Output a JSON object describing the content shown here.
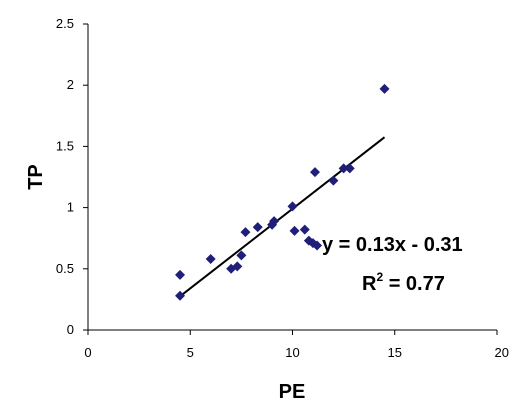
{
  "chart_data": {
    "type": "scatter",
    "xlabel": "PE",
    "ylabel": "TP",
    "xlim": [
      0,
      20
    ],
    "ylim": [
      0,
      2.5
    ],
    "x_ticks": [
      "0",
      "5",
      "10",
      "15",
      "20"
    ],
    "y_ticks": [
      "0",
      "0.5",
      "1",
      "1.5",
      "2",
      "2.5"
    ],
    "grid": false,
    "legend": "none",
    "marker": "diamond",
    "colors": {
      "points": "#1f1f7a",
      "trendline": "#000000"
    },
    "points": [
      {
        "x": 4.5,
        "y": 0.28
      },
      {
        "x": 4.5,
        "y": 0.45
      },
      {
        "x": 6.0,
        "y": 0.58
      },
      {
        "x": 7.0,
        "y": 0.5
      },
      {
        "x": 7.3,
        "y": 0.52
      },
      {
        "x": 7.5,
        "y": 0.61
      },
      {
        "x": 7.7,
        "y": 0.8
      },
      {
        "x": 8.3,
        "y": 0.84
      },
      {
        "x": 9.0,
        "y": 0.86
      },
      {
        "x": 9.1,
        "y": 0.89
      },
      {
        "x": 10.0,
        "y": 1.01
      },
      {
        "x": 10.1,
        "y": 0.81
      },
      {
        "x": 10.6,
        "y": 0.82
      },
      {
        "x": 10.8,
        "y": 0.73
      },
      {
        "x": 11.0,
        "y": 0.71
      },
      {
        "x": 11.2,
        "y": 0.69
      },
      {
        "x": 11.1,
        "y": 1.29
      },
      {
        "x": 12.0,
        "y": 1.22
      },
      {
        "x": 12.5,
        "y": 1.32
      },
      {
        "x": 12.8,
        "y": 1.32
      },
      {
        "x": 14.5,
        "y": 1.97
      }
    ],
    "trendline": {
      "slope": 0.13,
      "intercept": -0.31,
      "x_range": [
        4.5,
        14.5
      ]
    },
    "annotations": {
      "equation": "y = 0.13x - 0.31",
      "r2_prefix": "R",
      "r2_sup": "2",
      "r2_suffix": " = 0.77"
    }
  }
}
